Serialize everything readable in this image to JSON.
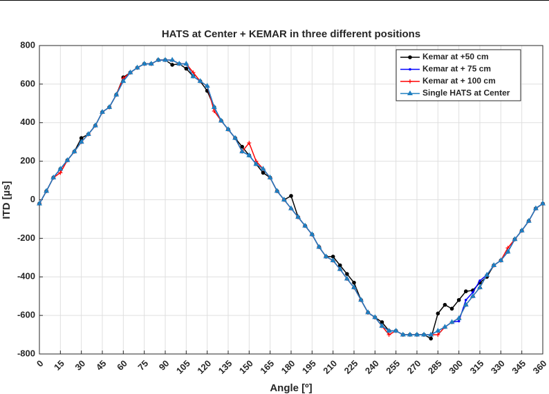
{
  "chart_data": {
    "type": "line",
    "title": "HATS at Center + KEMAR in three different positions",
    "xlabel": "Angle [º]",
    "ylabel": "ITD [µs]",
    "xlim": [
      0,
      360
    ],
    "ylim": [
      -800,
      800
    ],
    "xticks": [
      0,
      15,
      30,
      45,
      60,
      75,
      90,
      105,
      120,
      135,
      150,
      165,
      180,
      195,
      210,
      225,
      240,
      255,
      270,
      285,
      300,
      315,
      330,
      345,
      360
    ],
    "yticks": [
      -800,
      -600,
      -400,
      -200,
      0,
      200,
      400,
      600,
      800
    ],
    "grid": true,
    "legend": "upper right",
    "x": [
      0,
      5,
      10,
      15,
      20,
      25,
      30,
      35,
      40,
      45,
      50,
      55,
      60,
      65,
      70,
      75,
      80,
      85,
      90,
      95,
      100,
      105,
      110,
      115,
      120,
      125,
      130,
      135,
      140,
      145,
      150,
      155,
      160,
      165,
      170,
      175,
      180,
      185,
      190,
      195,
      200,
      205,
      210,
      215,
      220,
      225,
      230,
      235,
      240,
      245,
      250,
      255,
      260,
      265,
      270,
      275,
      280,
      285,
      290,
      295,
      300,
      305,
      310,
      315,
      320,
      325,
      330,
      335,
      340,
      345,
      350,
      355,
      360
    ],
    "series": [
      {
        "name": "Kemar at +50 cm",
        "color": "#000000",
        "marker": "circle",
        "values": [
          -20,
          45,
          115,
          160,
          205,
          250,
          320,
          340,
          385,
          455,
          480,
          545,
          635,
          660,
          685,
          705,
          705,
          725,
          725,
          700,
          705,
          680,
          640,
          615,
          565,
          480,
          410,
          365,
          320,
          275,
          230,
          185,
          140,
          115,
          45,
          0,
          20,
          -90,
          -135,
          -180,
          -245,
          -295,
          -295,
          -340,
          -385,
          -430,
          -520,
          -585,
          -610,
          -635,
          -680,
          -680,
          -700,
          -700,
          -700,
          -700,
          -720,
          -590,
          -545,
          -565,
          -520,
          -475,
          -470,
          -430,
          -400,
          -340,
          -315,
          -270,
          -205,
          -160,
          -110,
          -45,
          -20
        ]
      },
      {
        "name": "Kemar at + 75 cm",
        "color": "#0000ff",
        "marker": "dot",
        "values": [
          -20,
          45,
          115,
          160,
          205,
          250,
          300,
          340,
          385,
          455,
          480,
          545,
          615,
          660,
          685,
          705,
          705,
          725,
          725,
          725,
          705,
          705,
          640,
          615,
          590,
          480,
          410,
          365,
          320,
          250,
          230,
          185,
          160,
          115,
          45,
          0,
          -45,
          -90,
          -135,
          -180,
          -245,
          -295,
          -315,
          -360,
          -410,
          -455,
          -520,
          -585,
          -610,
          -655,
          -680,
          -680,
          -700,
          -700,
          -700,
          -700,
          -700,
          -680,
          -660,
          -635,
          -630,
          -520,
          -480,
          -420,
          -390,
          -340,
          -315,
          -270,
          -205,
          -160,
          -110,
          -45,
          -20
        ]
      },
      {
        "name": "Kemar at + 100 cm",
        "color": "#ff0000",
        "marker": "plus",
        "values": [
          -20,
          45,
          115,
          140,
          205,
          250,
          300,
          340,
          385,
          455,
          480,
          545,
          630,
          660,
          685,
          705,
          705,
          725,
          725,
          725,
          705,
          705,
          660,
          615,
          590,
          460,
          410,
          365,
          320,
          250,
          295,
          200,
          160,
          115,
          45,
          0,
          -45,
          -90,
          -135,
          -180,
          -245,
          -295,
          -315,
          -360,
          -410,
          -455,
          -520,
          -585,
          -610,
          -655,
          -700,
          -680,
          -700,
          -700,
          -700,
          -700,
          -700,
          -700,
          -660,
          -635,
          -615,
          -545,
          -500,
          -455,
          -390,
          -340,
          -315,
          -250,
          -205,
          -160,
          -110,
          -45,
          -20
        ]
      },
      {
        "name": "Single HATS at Center",
        "color": "#1f7fc0",
        "marker": "triangle",
        "values": [
          -20,
          45,
          115,
          160,
          205,
          250,
          300,
          340,
          385,
          455,
          480,
          545,
          615,
          660,
          685,
          705,
          705,
          725,
          725,
          725,
          705,
          705,
          640,
          615,
          590,
          480,
          410,
          365,
          320,
          250,
          230,
          185,
          160,
          115,
          45,
          0,
          -45,
          -90,
          -135,
          -180,
          -245,
          -295,
          -315,
          -360,
          -410,
          -455,
          -520,
          -585,
          -610,
          -655,
          -680,
          -680,
          -700,
          -700,
          -700,
          -700,
          -700,
          -680,
          -660,
          -635,
          -615,
          -545,
          -500,
          -455,
          -390,
          -340,
          -315,
          -270,
          -205,
          -160,
          -110,
          -45,
          -20
        ]
      }
    ]
  }
}
